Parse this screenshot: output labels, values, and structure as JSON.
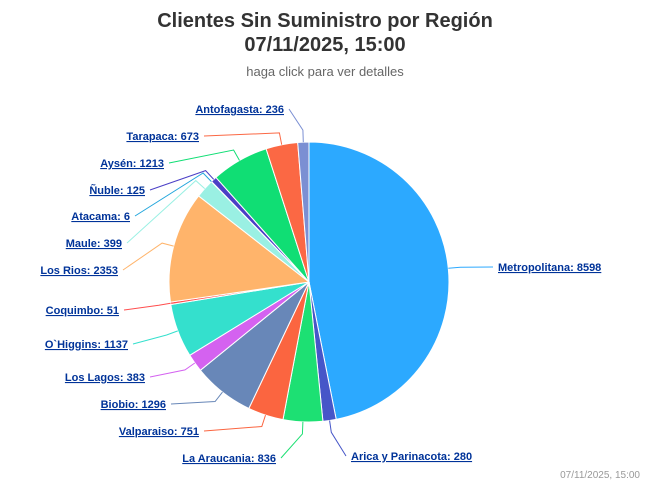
{
  "header": {
    "title_line1": "Clientes Sin Suministro por Región",
    "title_line2": "07/11/2025, 15:00",
    "subtitle": "haga click para ver detalles"
  },
  "footer": {
    "credit": "07/11/2025, 15:00"
  },
  "chart_data": {
    "type": "pie",
    "title": "Clientes Sin Suministro por Región 07/11/2025, 15:00",
    "subtitle": "haga click para ver detalles",
    "slices": [
      {
        "name": "Metropolitana",
        "value": 8598,
        "color": "#2ca9ff"
      },
      {
        "name": "Arica y Parinacota",
        "value": 280,
        "color": "#4656c8"
      },
      {
        "name": "La Araucania",
        "value": 836,
        "color": "#1de073"
      },
      {
        "name": "Valparaiso",
        "value": 751,
        "color": "#fb6540"
      },
      {
        "name": "Biobio",
        "value": 1296,
        "color": "#6887b8"
      },
      {
        "name": "Los Lagos",
        "value": 383,
        "color": "#d462f0"
      },
      {
        "name": "O`Higgins",
        "value": 1137,
        "color": "#34e0cd"
      },
      {
        "name": "Coquimbo",
        "value": 51,
        "color": "#ff4d4d"
      },
      {
        "name": "Los Rios",
        "value": 2353,
        "color": "#ffb46b"
      },
      {
        "name": "Maule",
        "value": 399,
        "color": "#9af0e3"
      },
      {
        "name": "Atacama",
        "value": 6,
        "color": "#22a6dc"
      },
      {
        "name": "Ñuble",
        "value": 125,
        "color": "#4b3fc6"
      },
      {
        "name": "Aysén",
        "value": 1213,
        "color": "#10de74"
      },
      {
        "name": "Tarapaca",
        "value": 673,
        "color": "#fb6844"
      },
      {
        "name": "Antofagasta",
        "value": 236,
        "color": "#7b8fd3"
      }
    ]
  }
}
